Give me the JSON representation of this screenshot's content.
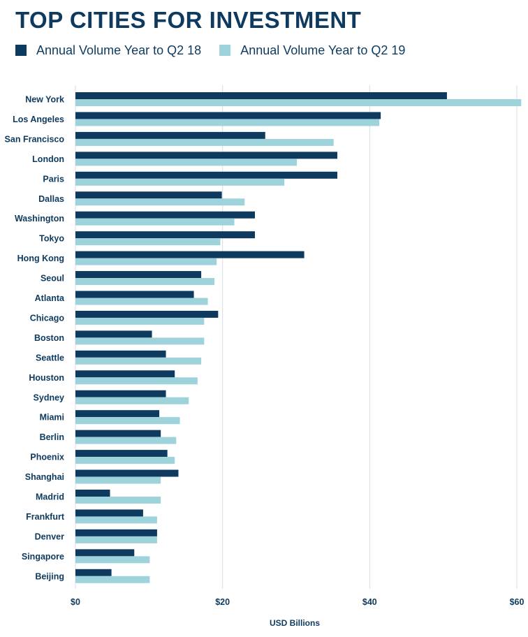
{
  "chart_data": {
    "type": "bar",
    "orientation": "horizontal",
    "title": "TOP CITIES FOR INVESTMENT",
    "xlabel": "USD Billions",
    "ylabel": "",
    "xlim": [
      0,
      60
    ],
    "x_ticks": [
      0,
      20,
      40,
      60
    ],
    "x_tick_labels": [
      "$0",
      "$20",
      "$40",
      "$60"
    ],
    "grid": "vertical",
    "legend_position": "top-left",
    "categories": [
      "New York",
      "Los Angeles",
      "San Francisco",
      "London",
      "Paris",
      "Dallas",
      "Washington",
      "Tokyo",
      "Hong Kong",
      "Seoul",
      "Atlanta",
      "Chicago",
      "Boston",
      "Seattle",
      "Houston",
      "Sydney",
      "Miami",
      "Berlin",
      "Phoenix",
      "Shanghai",
      "Madrid",
      "Frankfurt",
      "Denver",
      "Singapore",
      "Beijing"
    ],
    "series": [
      {
        "name": "Annual Volume Year to Q2 18",
        "color": "#0d3a5e",
        "values": [
          50.5,
          41.5,
          25.8,
          35.6,
          35.6,
          19.9,
          24.4,
          24.4,
          31.1,
          17.1,
          16.1,
          19.4,
          10.4,
          12.3,
          13.5,
          12.3,
          11.4,
          11.6,
          12.5,
          14.0,
          4.7,
          9.2,
          11.1,
          8.0,
          4.9
        ]
      },
      {
        "name": "Annual Volume Year to Q2 19",
        "color": "#9fd3dc",
        "values": [
          60.6,
          41.3,
          35.1,
          30.1,
          28.4,
          23.0,
          21.6,
          19.7,
          19.2,
          18.9,
          18.0,
          17.5,
          17.5,
          17.1,
          16.6,
          15.4,
          14.2,
          13.7,
          13.5,
          11.6,
          11.6,
          11.1,
          11.1,
          10.1,
          10.1
        ]
      }
    ]
  }
}
